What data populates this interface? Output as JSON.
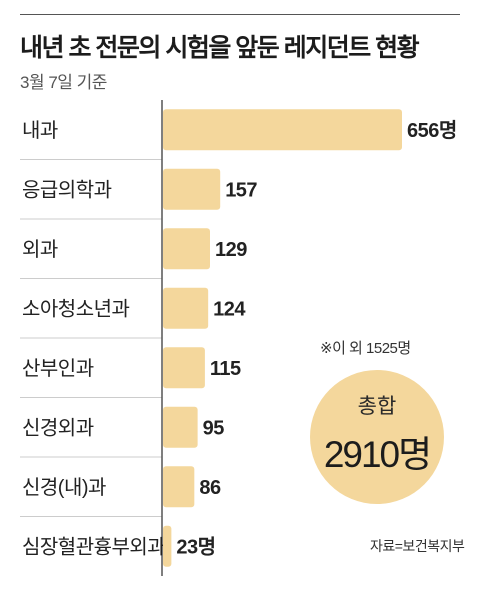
{
  "title": "내년 초 전문의 시험을 앞둔 레지던트 현황",
  "subtitle": "3월 7일 기준",
  "note": "※이 외 1525명",
  "total": {
    "label": "총합",
    "value": "2910명"
  },
  "source": "자료=보건복지부",
  "colors": {
    "bar": "#f4d79c",
    "axis": "#555555",
    "separator": "#cccccc"
  },
  "chart_data": {
    "type": "bar",
    "orientation": "horizontal",
    "title": "내년 초 전문의 시험을 앞둔 레지던트 현황",
    "subtitle": "3월 7일 기준",
    "categories": [
      "내과",
      "응급의학과",
      "외과",
      "소아청소년과",
      "산부인과",
      "신경외과",
      "신경(내)과",
      "심장혈관흉부외과"
    ],
    "values": [
      656,
      157,
      129,
      124,
      115,
      95,
      86,
      23
    ],
    "value_labels": [
      "656명",
      "157",
      "129",
      "124",
      "115",
      "95",
      "86",
      "23명"
    ],
    "xlim": [
      0,
      656
    ],
    "grid": false,
    "legend": "none"
  }
}
